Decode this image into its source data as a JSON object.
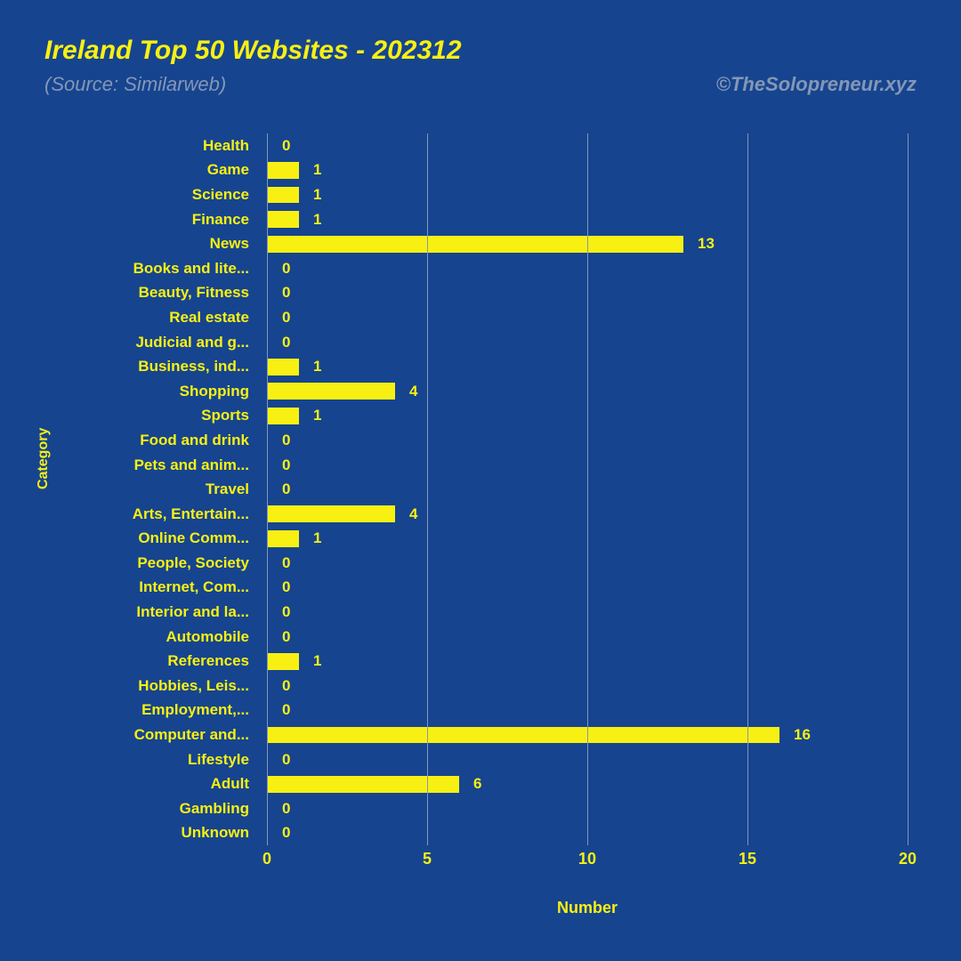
{
  "title": "Ireland Top 50 Websites - 202312",
  "subtitle": "(Source: Similarweb)",
  "credit": "©TheSolopreneur.xyz",
  "xlabel": "Number",
  "ylabel": "Category",
  "background_color": "#16448f",
  "bar_color": "#f8f013",
  "text_color": "#f8f013",
  "grid_color": "#8497b6",
  "subtitle_color": "#8497b6",
  "xlim": [
    0,
    20
  ],
  "xtick_step": 5,
  "xticks": [
    0,
    5,
    10,
    15,
    20
  ],
  "title_fontsize": 30,
  "subtitle_fontsize": 22,
  "tick_fontsize": 17,
  "categories": [
    {
      "label": "Health",
      "value": 0
    },
    {
      "label": "Game",
      "value": 1
    },
    {
      "label": "Science",
      "value": 1
    },
    {
      "label": "Finance",
      "value": 1
    },
    {
      "label": "News",
      "value": 13
    },
    {
      "label": "Books and lite...",
      "value": 0
    },
    {
      "label": "Beauty, Fitness",
      "value": 0
    },
    {
      "label": "Real estate",
      "value": 0
    },
    {
      "label": "Judicial and g...",
      "value": 0
    },
    {
      "label": "Business, ind...",
      "value": 1
    },
    {
      "label": "Shopping",
      "value": 4
    },
    {
      "label": "Sports",
      "value": 1
    },
    {
      "label": "Food and drink",
      "value": 0
    },
    {
      "label": "Pets and anim...",
      "value": 0
    },
    {
      "label": "Travel",
      "value": 0
    },
    {
      "label": "Arts, Entertain...",
      "value": 4
    },
    {
      "label": "Online Comm...",
      "value": 1
    },
    {
      "label": "People, Society",
      "value": 0
    },
    {
      "label": "Internet, Com...",
      "value": 0
    },
    {
      "label": "Interior and la...",
      "value": 0
    },
    {
      "label": "Automobile",
      "value": 0
    },
    {
      "label": "References",
      "value": 1
    },
    {
      "label": "Hobbies, Leis...",
      "value": 0
    },
    {
      "label": "Employment,...",
      "value": 0
    },
    {
      "label": "Computer and...",
      "value": 16
    },
    {
      "label": "Lifestyle",
      "value": 0
    },
    {
      "label": "Adult",
      "value": 6
    },
    {
      "label": "Gambling",
      "value": 0
    },
    {
      "label": "Unknown",
      "value": 0
    }
  ]
}
